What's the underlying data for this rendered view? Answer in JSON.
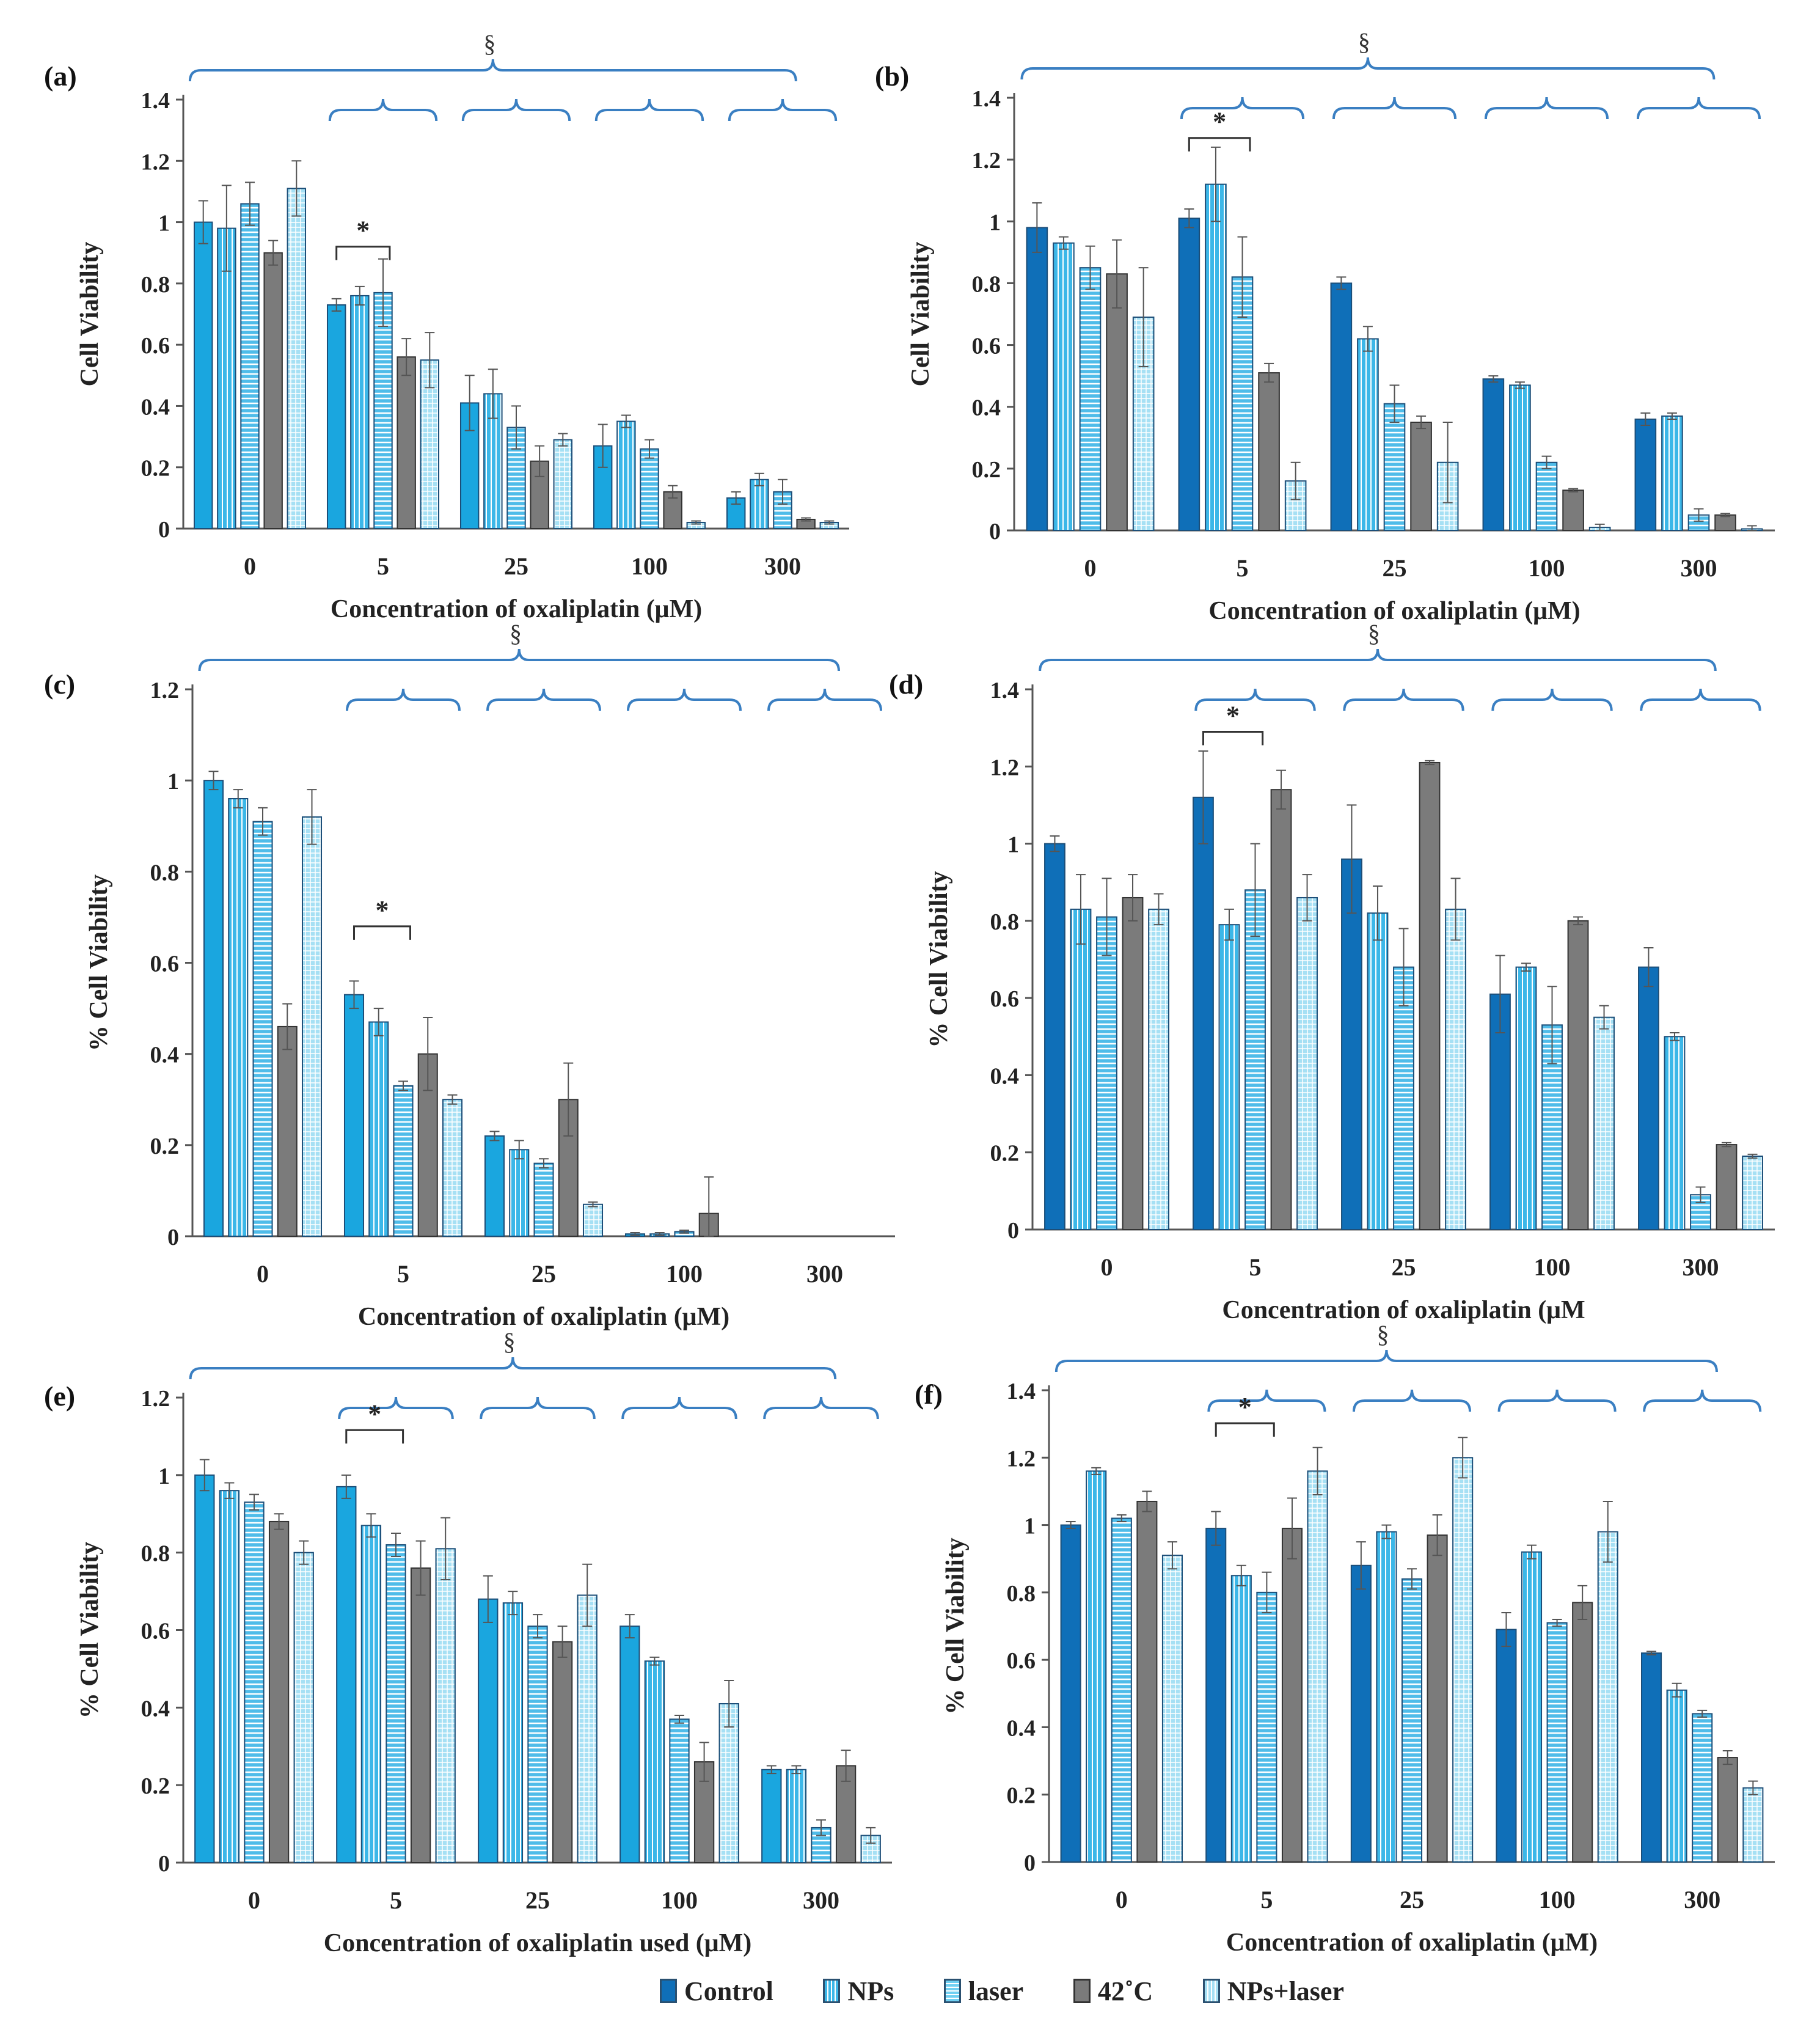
{
  "series_styles": [
    {
      "name": "Control",
      "color": "#1aa6df",
      "pattern": "solid"
    },
    {
      "name": "NPs",
      "color": "#3cb7e8",
      "pattern": "vlines"
    },
    {
      "name": "laser",
      "color": "#6fd0f2",
      "pattern": "hlines"
    },
    {
      "name": "42˚C",
      "color": "#7b7b7b",
      "pattern": "solid"
    },
    {
      "name": "NPs+laser",
      "color": "#a6e0f4",
      "pattern": "grid"
    }
  ],
  "legend": {
    "items": [
      "Control",
      "NPs",
      "laser",
      "42˚C",
      "NPs+laser"
    ]
  },
  "chart_data": [
    {
      "id": "a",
      "panel_label": "(a)",
      "type": "bar",
      "ylabel": "Cell Viability",
      "xlabel": "Concentration of oxaliplatin (μM)",
      "ylim": [
        0,
        1.4
      ],
      "yticks": [
        "0",
        "0.2",
        "0.4",
        "0.6",
        "0.8",
        "1",
        "1.2",
        "1.4"
      ],
      "categories": [
        "0",
        "5",
        "25",
        "100",
        "300"
      ],
      "control_color": "#1aa6df",
      "series": [
        {
          "name": "Control",
          "values": [
            1.0,
            0.73,
            0.41,
            0.27,
            0.1
          ],
          "errors": [
            0.07,
            0.02,
            0.09,
            0.07,
            0.02
          ]
        },
        {
          "name": "NPs",
          "values": [
            0.98,
            0.76,
            0.44,
            0.35,
            0.16
          ],
          "errors": [
            0.14,
            0.03,
            0.08,
            0.02,
            0.02
          ]
        },
        {
          "name": "laser",
          "values": [
            1.06,
            0.77,
            0.33,
            0.26,
            0.12
          ],
          "errors": [
            0.07,
            0.11,
            0.07,
            0.03,
            0.04
          ]
        },
        {
          "name": "42˚C",
          "values": [
            0.9,
            0.56,
            0.22,
            0.12,
            0.03
          ],
          "errors": [
            0.04,
            0.06,
            0.05,
            0.02,
            0.005
          ]
        },
        {
          "name": "NPs+laser",
          "values": [
            1.11,
            0.55,
            0.29,
            0.02,
            0.02
          ],
          "errors": [
            0.09,
            0.09,
            0.02,
            0.005,
            0.005
          ]
        }
      ],
      "annotations": {
        "section": "§",
        "star": "*"
      }
    },
    {
      "id": "b",
      "panel_label": "(b)",
      "type": "bar",
      "ylabel": "Cell Viability",
      "xlabel": "Concentration of oxaliplatin (μM)",
      "ylim": [
        0,
        1.4
      ],
      "yticks": [
        "0",
        "0.2",
        "0.4",
        "0.6",
        "0.8",
        "1",
        "1.2",
        "1.4"
      ],
      "categories": [
        "0",
        "5",
        "25",
        "100",
        "300"
      ],
      "control_color": "#0f6fb8",
      "series": [
        {
          "name": "Control",
          "values": [
            0.98,
            1.01,
            0.8,
            0.49,
            0.36
          ],
          "errors": [
            0.08,
            0.03,
            0.02,
            0.01,
            0.02
          ]
        },
        {
          "name": "NPs",
          "values": [
            0.93,
            1.12,
            0.62,
            0.47,
            0.37
          ],
          "errors": [
            0.02,
            0.12,
            0.04,
            0.01,
            0.01
          ]
        },
        {
          "name": "laser",
          "values": [
            0.85,
            0.82,
            0.41,
            0.22,
            0.05
          ],
          "errors": [
            0.07,
            0.13,
            0.06,
            0.02,
            0.02
          ]
        },
        {
          "name": "42˚C",
          "values": [
            0.83,
            0.51,
            0.35,
            0.13,
            0.05
          ],
          "errors": [
            0.11,
            0.03,
            0.02,
            0.005,
            0.005
          ]
        },
        {
          "name": "NPs+laser",
          "values": [
            0.69,
            0.16,
            0.22,
            0.01,
            0.005
          ],
          "errors": [
            0.16,
            0.06,
            0.13,
            0.01,
            0.01
          ]
        }
      ],
      "annotations": {
        "section": "§",
        "star": "*"
      }
    },
    {
      "id": "c",
      "panel_label": "(c)",
      "type": "bar",
      "ylabel": "% Cell Viability",
      "xlabel": "Concentration of oxaliplatin (μM)",
      "ylim": [
        0,
        1.2
      ],
      "yticks": [
        "0",
        "0.2",
        "0.4",
        "0.6",
        "0.8",
        "1",
        "1.2"
      ],
      "categories": [
        "0",
        "5",
        "25",
        "100",
        "300"
      ],
      "control_color": "#1aa6df",
      "series": [
        {
          "name": "Control",
          "values": [
            1.0,
            0.53,
            0.22,
            0.005,
            0.0
          ],
          "errors": [
            0.02,
            0.03,
            0.01,
            0.003,
            0.0
          ]
        },
        {
          "name": "NPs",
          "values": [
            0.96,
            0.47,
            0.19,
            0.005,
            0.0
          ],
          "errors": [
            0.02,
            0.03,
            0.02,
            0.003,
            0.0
          ]
        },
        {
          "name": "laser",
          "values": [
            0.91,
            0.33,
            0.16,
            0.01,
            0.0
          ],
          "errors": [
            0.03,
            0.01,
            0.01,
            0.003,
            0.0
          ]
        },
        {
          "name": "42˚C",
          "values": [
            0.46,
            0.4,
            0.3,
            0.05,
            0.0
          ],
          "errors": [
            0.05,
            0.08,
            0.08,
            0.08,
            0.0
          ]
        },
        {
          "name": "NPs+laser",
          "values": [
            0.92,
            0.3,
            0.07,
            0.0,
            0.0
          ],
          "errors": [
            0.06,
            0.01,
            0.005,
            0.0,
            0.0
          ]
        }
      ],
      "annotations": {
        "section": "§",
        "star": "*"
      }
    },
    {
      "id": "d",
      "panel_label": "(d)",
      "type": "bar",
      "ylabel": "% Cell Viability",
      "xlabel": "Concentration of oxaliplatin (μM",
      "ylim": [
        0,
        1.4
      ],
      "yticks": [
        "0",
        "0.2",
        "0.4",
        "0.6",
        "0.8",
        "1",
        "1.2",
        "1.4"
      ],
      "categories": [
        "0",
        "5",
        "25",
        "100",
        "300"
      ],
      "control_color": "#0f6fb8",
      "series": [
        {
          "name": "Control",
          "values": [
            1.0,
            1.12,
            0.96,
            0.61,
            0.68
          ],
          "errors": [
            0.02,
            0.12,
            0.14,
            0.1,
            0.05
          ]
        },
        {
          "name": "NPs",
          "values": [
            0.83,
            0.79,
            0.82,
            0.68,
            0.5
          ],
          "errors": [
            0.09,
            0.04,
            0.07,
            0.01,
            0.01
          ]
        },
        {
          "name": "laser",
          "values": [
            0.81,
            0.88,
            0.68,
            0.53,
            0.09
          ],
          "errors": [
            0.1,
            0.12,
            0.1,
            0.1,
            0.02
          ]
        },
        {
          "name": "42˚C",
          "values": [
            0.86,
            1.14,
            1.21,
            0.8,
            0.22
          ],
          "errors": [
            0.06,
            0.05,
            0.005,
            0.01,
            0.005
          ]
        },
        {
          "name": "NPs+laser",
          "values": [
            0.83,
            0.86,
            0.83,
            0.55,
            0.19
          ],
          "errors": [
            0.04,
            0.06,
            0.08,
            0.03,
            0.005
          ]
        }
      ],
      "annotations": {
        "section": "§",
        "star": "*"
      }
    },
    {
      "id": "e",
      "panel_label": "(e)",
      "type": "bar",
      "ylabel": "% Cell Viability",
      "xlabel": "Concentration of oxaliplatin used (μM)",
      "ylim": [
        0,
        1.2
      ],
      "yticks": [
        "0",
        "0.2",
        "0.4",
        "0.6",
        "0.8",
        "1",
        "1.2"
      ],
      "categories": [
        "0",
        "5",
        "25",
        "100",
        "300"
      ],
      "control_color": "#1aa6df",
      "series": [
        {
          "name": "Control",
          "values": [
            1.0,
            0.97,
            0.68,
            0.61,
            0.24
          ],
          "errors": [
            0.04,
            0.03,
            0.06,
            0.03,
            0.01
          ]
        },
        {
          "name": "NPs",
          "values": [
            0.96,
            0.87,
            0.67,
            0.52,
            0.24
          ],
          "errors": [
            0.02,
            0.03,
            0.03,
            0.01,
            0.01
          ]
        },
        {
          "name": "laser",
          "values": [
            0.93,
            0.82,
            0.61,
            0.37,
            0.09
          ],
          "errors": [
            0.02,
            0.03,
            0.03,
            0.01,
            0.02
          ]
        },
        {
          "name": "42˚C",
          "values": [
            0.88,
            0.76,
            0.57,
            0.26,
            0.25
          ],
          "errors": [
            0.02,
            0.07,
            0.04,
            0.05,
            0.04
          ]
        },
        {
          "name": "NPs+laser",
          "values": [
            0.8,
            0.81,
            0.69,
            0.41,
            0.07
          ],
          "errors": [
            0.03,
            0.08,
            0.08,
            0.06,
            0.02
          ]
        }
      ],
      "annotations": {
        "section": "§",
        "star": "*"
      }
    },
    {
      "id": "f",
      "panel_label": "(f)",
      "type": "bar",
      "ylabel": "% Cell Viability",
      "xlabel": "Concentration of oxaliplatin (μM)",
      "ylim": [
        0,
        1.4
      ],
      "yticks": [
        "0",
        "0.2",
        "0.4",
        "0.6",
        "0.8",
        "1",
        "1.2",
        "1.4"
      ],
      "categories": [
        "0",
        "5",
        "25",
        "100",
        "300"
      ],
      "control_color": "#0f6fb8",
      "series": [
        {
          "name": "Control",
          "values": [
            1.0,
            0.99,
            0.88,
            0.69,
            0.62
          ],
          "errors": [
            0.01,
            0.05,
            0.07,
            0.05,
            0.005
          ]
        },
        {
          "name": "NPs",
          "values": [
            1.16,
            0.85,
            0.98,
            0.92,
            0.51
          ],
          "errors": [
            0.01,
            0.03,
            0.02,
            0.02,
            0.02
          ]
        },
        {
          "name": "laser",
          "values": [
            1.02,
            0.8,
            0.84,
            0.71,
            0.44
          ],
          "errors": [
            0.01,
            0.06,
            0.03,
            0.01,
            0.01
          ]
        },
        {
          "name": "42˚C",
          "values": [
            1.07,
            0.99,
            0.97,
            0.77,
            0.31
          ],
          "errors": [
            0.03,
            0.09,
            0.06,
            0.05,
            0.02
          ]
        },
        {
          "name": "NPs+laser",
          "values": [
            0.91,
            1.16,
            1.2,
            0.98,
            0.22
          ],
          "errors": [
            0.04,
            0.07,
            0.06,
            0.09,
            0.02
          ]
        }
      ],
      "annotations": {
        "section": "§",
        "star": "*"
      }
    }
  ]
}
